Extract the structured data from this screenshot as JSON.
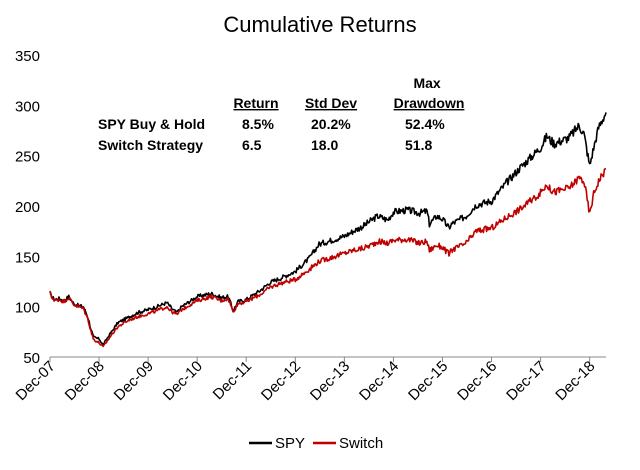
{
  "chart_data": {
    "type": "line",
    "title": "Cumulative Returns",
    "xlabel": "",
    "ylabel": "",
    "ylim": [
      50,
      350
    ],
    "yticks": [
      50,
      100,
      150,
      200,
      250,
      300,
      350
    ],
    "x_tick_labels": [
      "Dec-07",
      "Dec-08",
      "Dec-09",
      "Dec-10",
      "Dec-11",
      "Dec-12",
      "Dec-13",
      "Dec-14",
      "Dec-15",
      "Dec-16",
      "Dec-17",
      "Dec-18"
    ],
    "x_range_years": [
      2007.917,
      2019.25
    ],
    "grid": false,
    "legend_position": "bottom",
    "colors": {
      "SPY": "#000000",
      "Switch": "#c00000",
      "text": "#000000"
    },
    "series": [
      {
        "name": "SPY",
        "color": "#000000",
        "x": [
          2007.917,
          2008.0,
          2008.1,
          2008.2,
          2008.3,
          2008.4,
          2008.5,
          2008.6,
          2008.7,
          2008.75,
          2008.8,
          2008.85,
          2008.917,
          2009.0,
          2009.1,
          2009.2,
          2009.3,
          2009.5,
          2009.7,
          2009.917,
          2010.1,
          2010.3,
          2010.4,
          2010.5,
          2010.6,
          2010.917,
          2011.2,
          2011.4,
          2011.55,
          2011.65,
          2011.75,
          2011.917,
          2012.2,
          2012.4,
          2012.6,
          2012.917,
          2013.2,
          2013.4,
          2013.6,
          2013.917,
          2014.1,
          2014.3,
          2014.5,
          2014.6,
          2014.8,
          2014.917,
          2015.2,
          2015.45,
          2015.6,
          2015.65,
          2015.8,
          2015.917,
          2016.05,
          2016.1,
          2016.4,
          2016.6,
          2016.917,
          2017.2,
          2017.5,
          2017.917,
          2018.05,
          2018.1,
          2018.2,
          2018.5,
          2018.7,
          2018.8,
          2018.917,
          2019.0,
          2019.1,
          2019.25
        ],
        "values": [
          113,
          107,
          108,
          106,
          110,
          103,
          101,
          100,
          88,
          78,
          70,
          69,
          68,
          62,
          70,
          77,
          84,
          89,
          94,
          97,
          100,
          104,
          98,
          94,
          100,
          110,
          113,
          109,
          110,
          96,
          105,
          107,
          116,
          124,
          128,
          135,
          148,
          162,
          165,
          170,
          175,
          180,
          187,
          190,
          186,
          194,
          196,
          193,
          195,
          182,
          190,
          187,
          178,
          182,
          190,
          201,
          205,
          222,
          238,
          258,
          270,
          266,
          262,
          268,
          280,
          272,
          240,
          258,
          278,
          293
        ]
      },
      {
        "name": "Switch",
        "color": "#c00000",
        "x": [
          2007.917,
          2008.0,
          2008.1,
          2008.2,
          2008.3,
          2008.4,
          2008.5,
          2008.6,
          2008.7,
          2008.75,
          2008.8,
          2008.85,
          2008.917,
          2009.0,
          2009.1,
          2009.2,
          2009.3,
          2009.5,
          2009.7,
          2009.917,
          2010.1,
          2010.3,
          2010.4,
          2010.5,
          2010.6,
          2010.917,
          2011.2,
          2011.4,
          2011.55,
          2011.65,
          2011.75,
          2011.917,
          2012.2,
          2012.4,
          2012.6,
          2012.917,
          2013.2,
          2013.4,
          2013.6,
          2013.917,
          2014.1,
          2014.3,
          2014.5,
          2014.6,
          2014.8,
          2014.917,
          2015.2,
          2015.45,
          2015.6,
          2015.65,
          2015.8,
          2015.917,
          2016.05,
          2016.1,
          2016.4,
          2016.6,
          2016.917,
          2017.2,
          2017.5,
          2017.917,
          2018.05,
          2018.1,
          2018.2,
          2018.5,
          2018.7,
          2018.8,
          2018.917,
          2019.0,
          2019.1,
          2019.25
        ],
        "values": [
          114,
          106,
          107,
          105,
          109,
          102,
          100,
          98,
          86,
          76,
          68,
          66,
          64,
          60,
          67,
          74,
          80,
          86,
          90,
          93,
          96,
          100,
          95,
          92,
          97,
          106,
          110,
          106,
          108,
          95,
          103,
          105,
          112,
          119,
          123,
          127,
          137,
          145,
          148,
          153,
          156,
          158,
          162,
          165,
          163,
          166,
          167,
          163,
          165,
          156,
          161,
          159,
          152,
          156,
          163,
          175,
          178,
          188,
          197,
          213,
          222,
          217,
          214,
          218,
          228,
          225,
          192,
          212,
          225,
          237
        ]
      }
    ],
    "stats_table": {
      "headers": [
        "Return",
        "Std Dev",
        "Max Drawdown"
      ],
      "rows": [
        {
          "label": "SPY Buy & Hold",
          "values": [
            "8.5%",
            "20.2%",
            "52.4%"
          ]
        },
        {
          "label": "Switch Strategy",
          "values": [
            "6.5",
            "18.0",
            "51.8"
          ]
        }
      ]
    }
  }
}
